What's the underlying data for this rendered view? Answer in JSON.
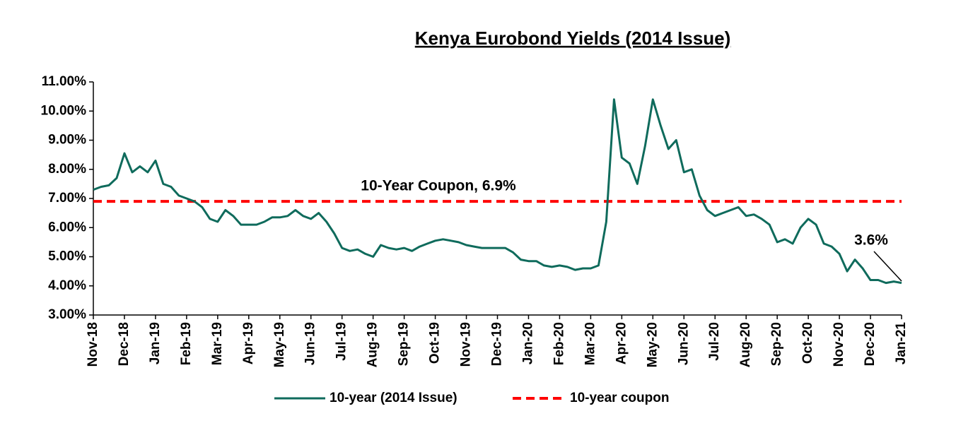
{
  "chart_data": {
    "type": "line",
    "title": "Kenya Eurobond Yields (2014 Issue)",
    "categories": [
      "Nov-18",
      null,
      null,
      null,
      "Dec-18",
      null,
      null,
      null,
      "Jan-19",
      null,
      null,
      null,
      "Feb-19",
      null,
      null,
      null,
      "Mar-19",
      null,
      null,
      null,
      "Apr-19",
      null,
      null,
      null,
      "May-19",
      null,
      null,
      null,
      "Jun-19",
      null,
      null,
      null,
      "Jul-19",
      null,
      null,
      null,
      "Aug-19",
      null,
      null,
      null,
      "Sep-19",
      null,
      null,
      null,
      "Oct-19",
      null,
      null,
      null,
      "Nov-19",
      null,
      null,
      null,
      "Dec-19",
      null,
      null,
      null,
      "Jan-20",
      null,
      null,
      null,
      "Feb-20",
      null,
      null,
      null,
      "Mar-20",
      null,
      null,
      null,
      "Apr-20",
      null,
      null,
      null,
      "May-20",
      null,
      null,
      null,
      "Jun-20",
      null,
      null,
      null,
      "Jul-20",
      null,
      null,
      null,
      "Aug-20",
      null,
      null,
      null,
      "Sep-20",
      null,
      null,
      null,
      "Oct-20",
      null,
      null,
      null,
      "Nov-20",
      null,
      null,
      null,
      "Dec-20",
      null,
      null,
      null,
      "Jan-21"
    ],
    "series": [
      {
        "name": "10-year (2014 Issue)",
        "color": "#0f6b5c",
        "values": [
          7.3,
          7.4,
          7.45,
          7.7,
          8.55,
          7.9,
          8.1,
          7.9,
          8.3,
          7.5,
          7.4,
          7.1,
          7.0,
          6.9,
          6.7,
          6.3,
          6.2,
          6.6,
          6.4,
          6.1,
          6.1,
          6.1,
          6.2,
          6.35,
          6.35,
          6.4,
          6.6,
          6.4,
          6.3,
          6.5,
          6.2,
          5.8,
          5.3,
          5.2,
          5.25,
          5.1,
          5.0,
          5.4,
          5.3,
          5.25,
          5.3,
          5.2,
          5.35,
          5.45,
          5.55,
          5.6,
          5.55,
          5.5,
          5.4,
          5.35,
          5.3,
          5.3,
          5.3,
          5.3,
          5.15,
          4.9,
          4.85,
          4.85,
          4.7,
          4.65,
          4.7,
          4.65,
          4.55,
          4.6,
          4.6,
          4.7,
          6.2,
          10.4,
          8.4,
          8.2,
          7.5,
          8.8,
          10.4,
          9.5,
          8.7,
          9.0,
          7.9,
          8.0,
          7.1,
          6.6,
          6.4,
          6.5,
          6.6,
          6.7,
          6.4,
          6.45,
          6.3,
          6.1,
          5.5,
          5.6,
          5.45,
          6.0,
          6.3,
          6.1,
          5.45,
          5.35,
          5.1,
          4.5,
          4.9,
          4.6,
          4.2,
          4.2,
          4.1,
          4.15,
          4.1
        ]
      }
    ],
    "reference_line": {
      "name": "10-year coupon",
      "color": "#ff0000",
      "value": 6.9,
      "dashed": true
    },
    "annotations": [
      "10-Year Coupon, 6.9%",
      "3.6%"
    ],
    "ylim": [
      3,
      11
    ],
    "yticks": [
      {
        "value": 3,
        "label": "3.00%"
      },
      {
        "value": 4,
        "label": "4.00%"
      },
      {
        "value": 5,
        "label": "5.00%"
      },
      {
        "value": 6,
        "label": "6.00%"
      },
      {
        "value": 7,
        "label": "7.00%"
      },
      {
        "value": 8,
        "label": "8.00%"
      },
      {
        "value": 9,
        "label": "9.00%"
      },
      {
        "value": 10,
        "label": "10.00%"
      },
      {
        "value": 11,
        "label": "11.00%"
      }
    ],
    "grid": false,
    "legend": "bottom"
  }
}
